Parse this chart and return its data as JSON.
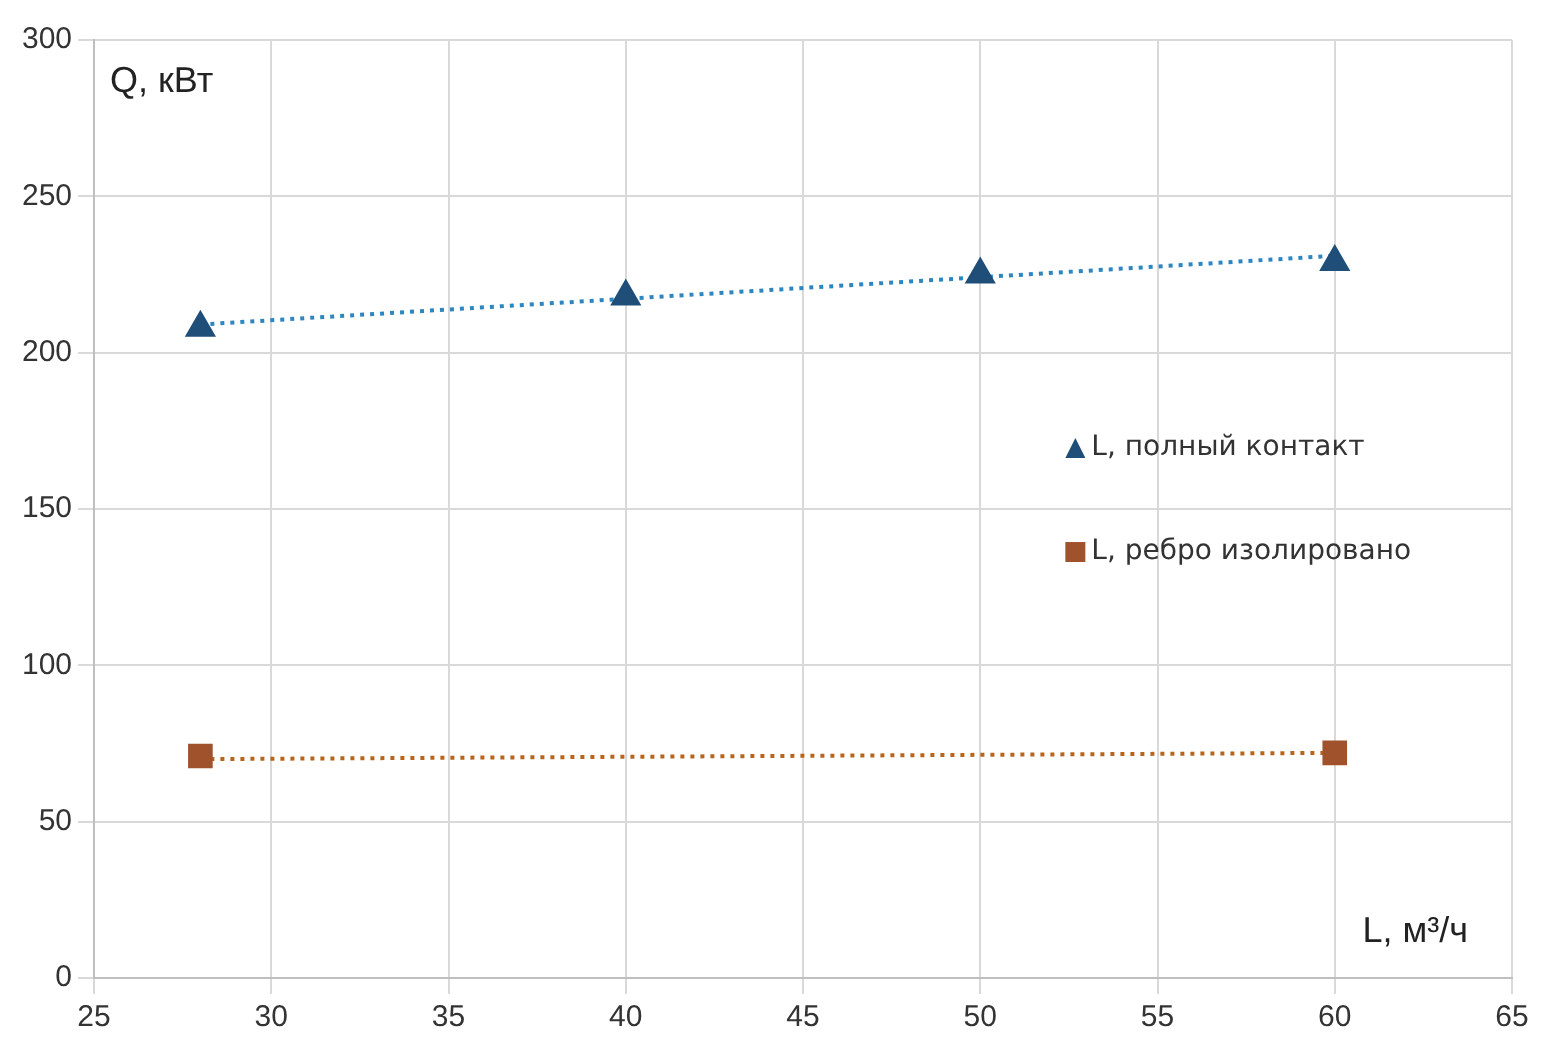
{
  "chart_data": {
    "type": "scatter",
    "xlabel": "L, м³/ч",
    "ylabel": "Q, кВт",
    "xlim": [
      25,
      65
    ],
    "xticks": [
      25,
      30,
      35,
      40,
      45,
      50,
      55,
      60,
      65
    ],
    "ylim": [
      0,
      300
    ],
    "yticks": [
      0,
      50,
      100,
      150,
      200,
      250,
      300
    ],
    "grid": true,
    "legend": "right",
    "series": [
      {
        "name": "L, полный контакт",
        "type": "scatter",
        "marker": "triangle",
        "color": "#1f4e79",
        "x": [
          28,
          40,
          50,
          60
        ],
        "values": [
          208,
          218,
          225,
          229
        ]
      },
      {
        "name": "L, ребро изолировано",
        "type": "scatter",
        "marker": "square",
        "color": "#a0522d",
        "x": [
          28,
          60
        ],
        "values": [
          71,
          72
        ]
      },
      {
        "type": "line",
        "line_style": "dotted",
        "marker": "none",
        "color": "#2e86c1",
        "x": [
          28,
          60
        ],
        "values": [
          209,
          231
        ]
      },
      {
        "type": "line",
        "line_style": "dotted",
        "marker": "none",
        "color": "#b5651d",
        "x": [
          28,
          60
        ],
        "values": [
          70,
          72
        ]
      }
    ]
  }
}
